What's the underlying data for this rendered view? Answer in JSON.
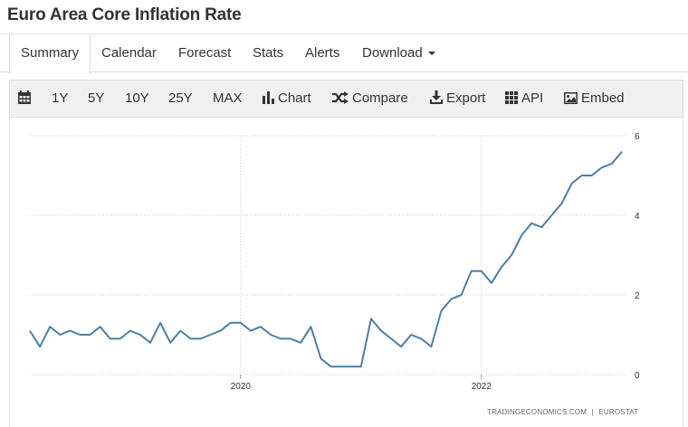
{
  "page": {
    "title": "Euro Area Core Inflation Rate"
  },
  "tabs": [
    {
      "label": "Summary",
      "active": true
    },
    {
      "label": "Calendar"
    },
    {
      "label": "Forecast"
    },
    {
      "label": "Stats"
    },
    {
      "label": "Alerts"
    },
    {
      "label": "Download",
      "dropdown": true
    }
  ],
  "toolbar": {
    "calendar_icon": "calendar-icon",
    "ranges": [
      "1Y",
      "5Y",
      "10Y",
      "25Y",
      "MAX"
    ],
    "chart_label": "Chart",
    "compare_label": "Compare",
    "export_label": "Export",
    "api_label": "API",
    "embed_label": "Embed"
  },
  "source": {
    "left": "TRADINGECONOMICS.COM",
    "separator": "|",
    "right": "EUROSTAT"
  },
  "chart_data": {
    "type": "line",
    "line_color": "#4a7fa8",
    "grid": true,
    "x_start": "2018-04",
    "x_tick_labels": [
      "2020",
      "2022"
    ],
    "y_tick_labels": [
      "0",
      "2",
      "4",
      "6"
    ],
    "ylim": [
      0,
      6
    ],
    "series": [
      {
        "values": [
          1.1,
          0.7,
          1.2,
          1.0,
          1.1,
          1.0,
          1.0,
          1.2,
          0.9,
          0.9,
          1.1,
          1.0,
          0.8,
          1.3,
          0.8,
          1.1,
          0.9,
          0.9,
          1.0,
          1.1,
          1.3,
          1.3,
          1.1,
          1.2,
          1.0,
          0.9,
          0.9,
          0.8,
          1.2,
          0.4,
          0.2,
          0.2,
          0.2,
          0.2,
          1.4,
          1.1,
          0.9,
          0.7,
          1.0,
          0.9,
          0.7,
          1.6,
          1.9,
          2.0,
          2.6,
          2.6,
          2.3,
          2.7,
          3.0,
          3.5,
          3.8,
          3.7,
          4.0,
          4.3,
          4.8,
          5.0,
          5.0,
          5.2,
          5.3,
          5.6
        ]
      }
    ]
  }
}
